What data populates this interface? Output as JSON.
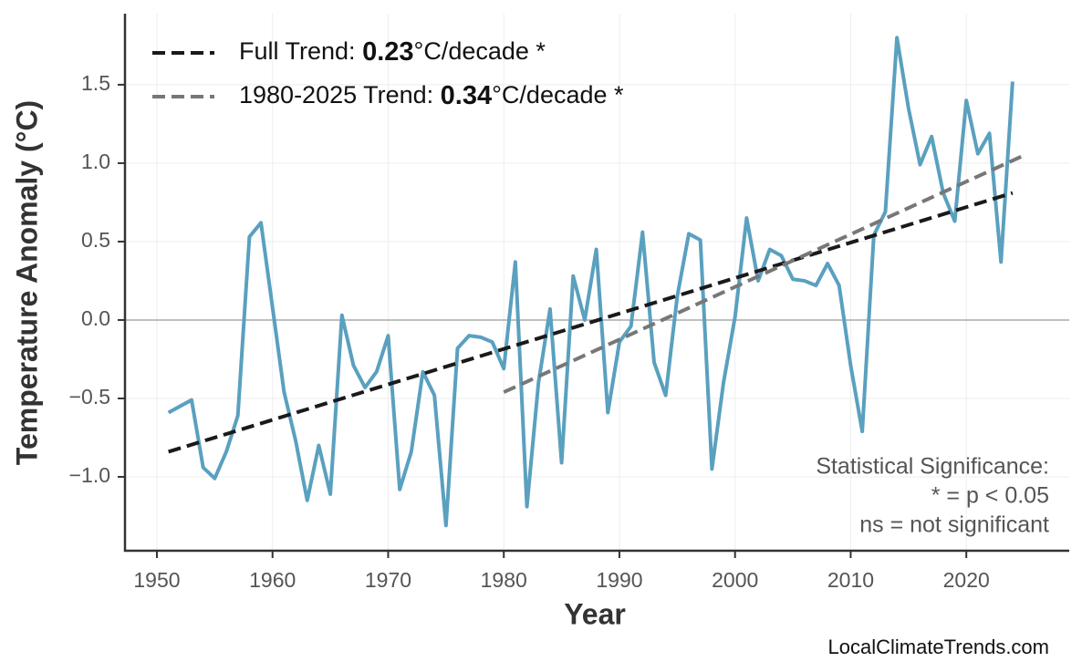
{
  "chart_data": {
    "type": "line",
    "xlabel": "Year",
    "ylabel": "Temperature Anomaly (°C)",
    "x": [
      1951,
      1952,
      1953,
      1954,
      1955,
      1956,
      1957,
      1958,
      1959,
      1960,
      1961,
      1962,
      1963,
      1964,
      1965,
      1966,
      1967,
      1968,
      1969,
      1970,
      1971,
      1972,
      1973,
      1974,
      1975,
      1976,
      1977,
      1978,
      1979,
      1980,
      1981,
      1982,
      1983,
      1984,
      1985,
      1986,
      1987,
      1988,
      1989,
      1990,
      1991,
      1992,
      1993,
      1994,
      1995,
      1996,
      1997,
      1998,
      1999,
      2000,
      2001,
      2002,
      2003,
      2004,
      2005,
      2006,
      2007,
      2008,
      2009,
      2010,
      2011,
      2012,
      2013,
      2014,
      2015,
      2016,
      2017,
      2018,
      2019,
      2020,
      2021,
      2022,
      2023,
      2024
    ],
    "series": [
      {
        "color": "#5aa0bf",
        "values": [
          -0.59,
          -0.55,
          -0.51,
          -0.94,
          -1.01,
          -0.84,
          -0.61,
          0.53,
          0.62,
          0.08,
          -0.46,
          -0.77,
          -1.15,
          -0.8,
          -1.11,
          0.03,
          -0.29,
          -0.43,
          -0.33,
          -0.1,
          -1.08,
          -0.84,
          -0.33,
          -0.48,
          -1.31,
          -0.18,
          -0.1,
          -0.11,
          -0.14,
          -0.31,
          0.37,
          -1.19,
          -0.4,
          0.07,
          -0.91,
          0.28,
          0.0,
          0.45,
          -0.59,
          -0.14,
          -0.04,
          0.56,
          -0.27,
          -0.48,
          0.15,
          0.55,
          0.51,
          -0.95,
          -0.4,
          0.02,
          0.65,
          0.25,
          0.45,
          0.41,
          0.26,
          0.25,
          0.22,
          0.36,
          0.22,
          -0.29,
          -0.71,
          0.54,
          0.69,
          1.8,
          1.35,
          0.99,
          1.17,
          0.81,
          0.63,
          1.4,
          1.06,
          1.19,
          0.37,
          1.52
        ]
      },
      {
        "name_parts": [
          "Full Trend: ",
          "0.23",
          "°C/decade *"
        ],
        "color": "#1a1a1a",
        "dashed": true,
        "x": [
          1951,
          2024
        ],
        "values": [
          -0.84,
          0.81
        ]
      },
      {
        "name_parts": [
          "1980-2025 Trend: ",
          "0.34",
          "°C/decade *"
        ],
        "color": "#777777",
        "dashed": true,
        "x": [
          1980,
          2025
        ],
        "values": [
          -0.46,
          1.05
        ]
      }
    ],
    "xlim": [
      1947.24,
      2028.9
    ],
    "xticks": [
      1950,
      1960,
      1970,
      1980,
      1990,
      2000,
      2010,
      2020
    ],
    "ylim": [
      -1.471,
      1.953
    ],
    "yticks": [
      {
        "value": -1,
        "label": "−1.0"
      },
      {
        "value": -0.5,
        "label": "−0.5"
      },
      {
        "value": 0,
        "label": "0.0"
      },
      {
        "value": 0.5,
        "label": "0.5"
      },
      {
        "value": 1,
        "label": "1.0"
      },
      {
        "value": 1.5,
        "label": "1.5"
      }
    ],
    "zero_line": 0,
    "grid": true,
    "legend": "upper left",
    "annotation": [
      "Statistical Significance:",
      "* = p < 0.05",
      "ns = not significant"
    ],
    "credit": "LocalClimateTrends.com"
  }
}
